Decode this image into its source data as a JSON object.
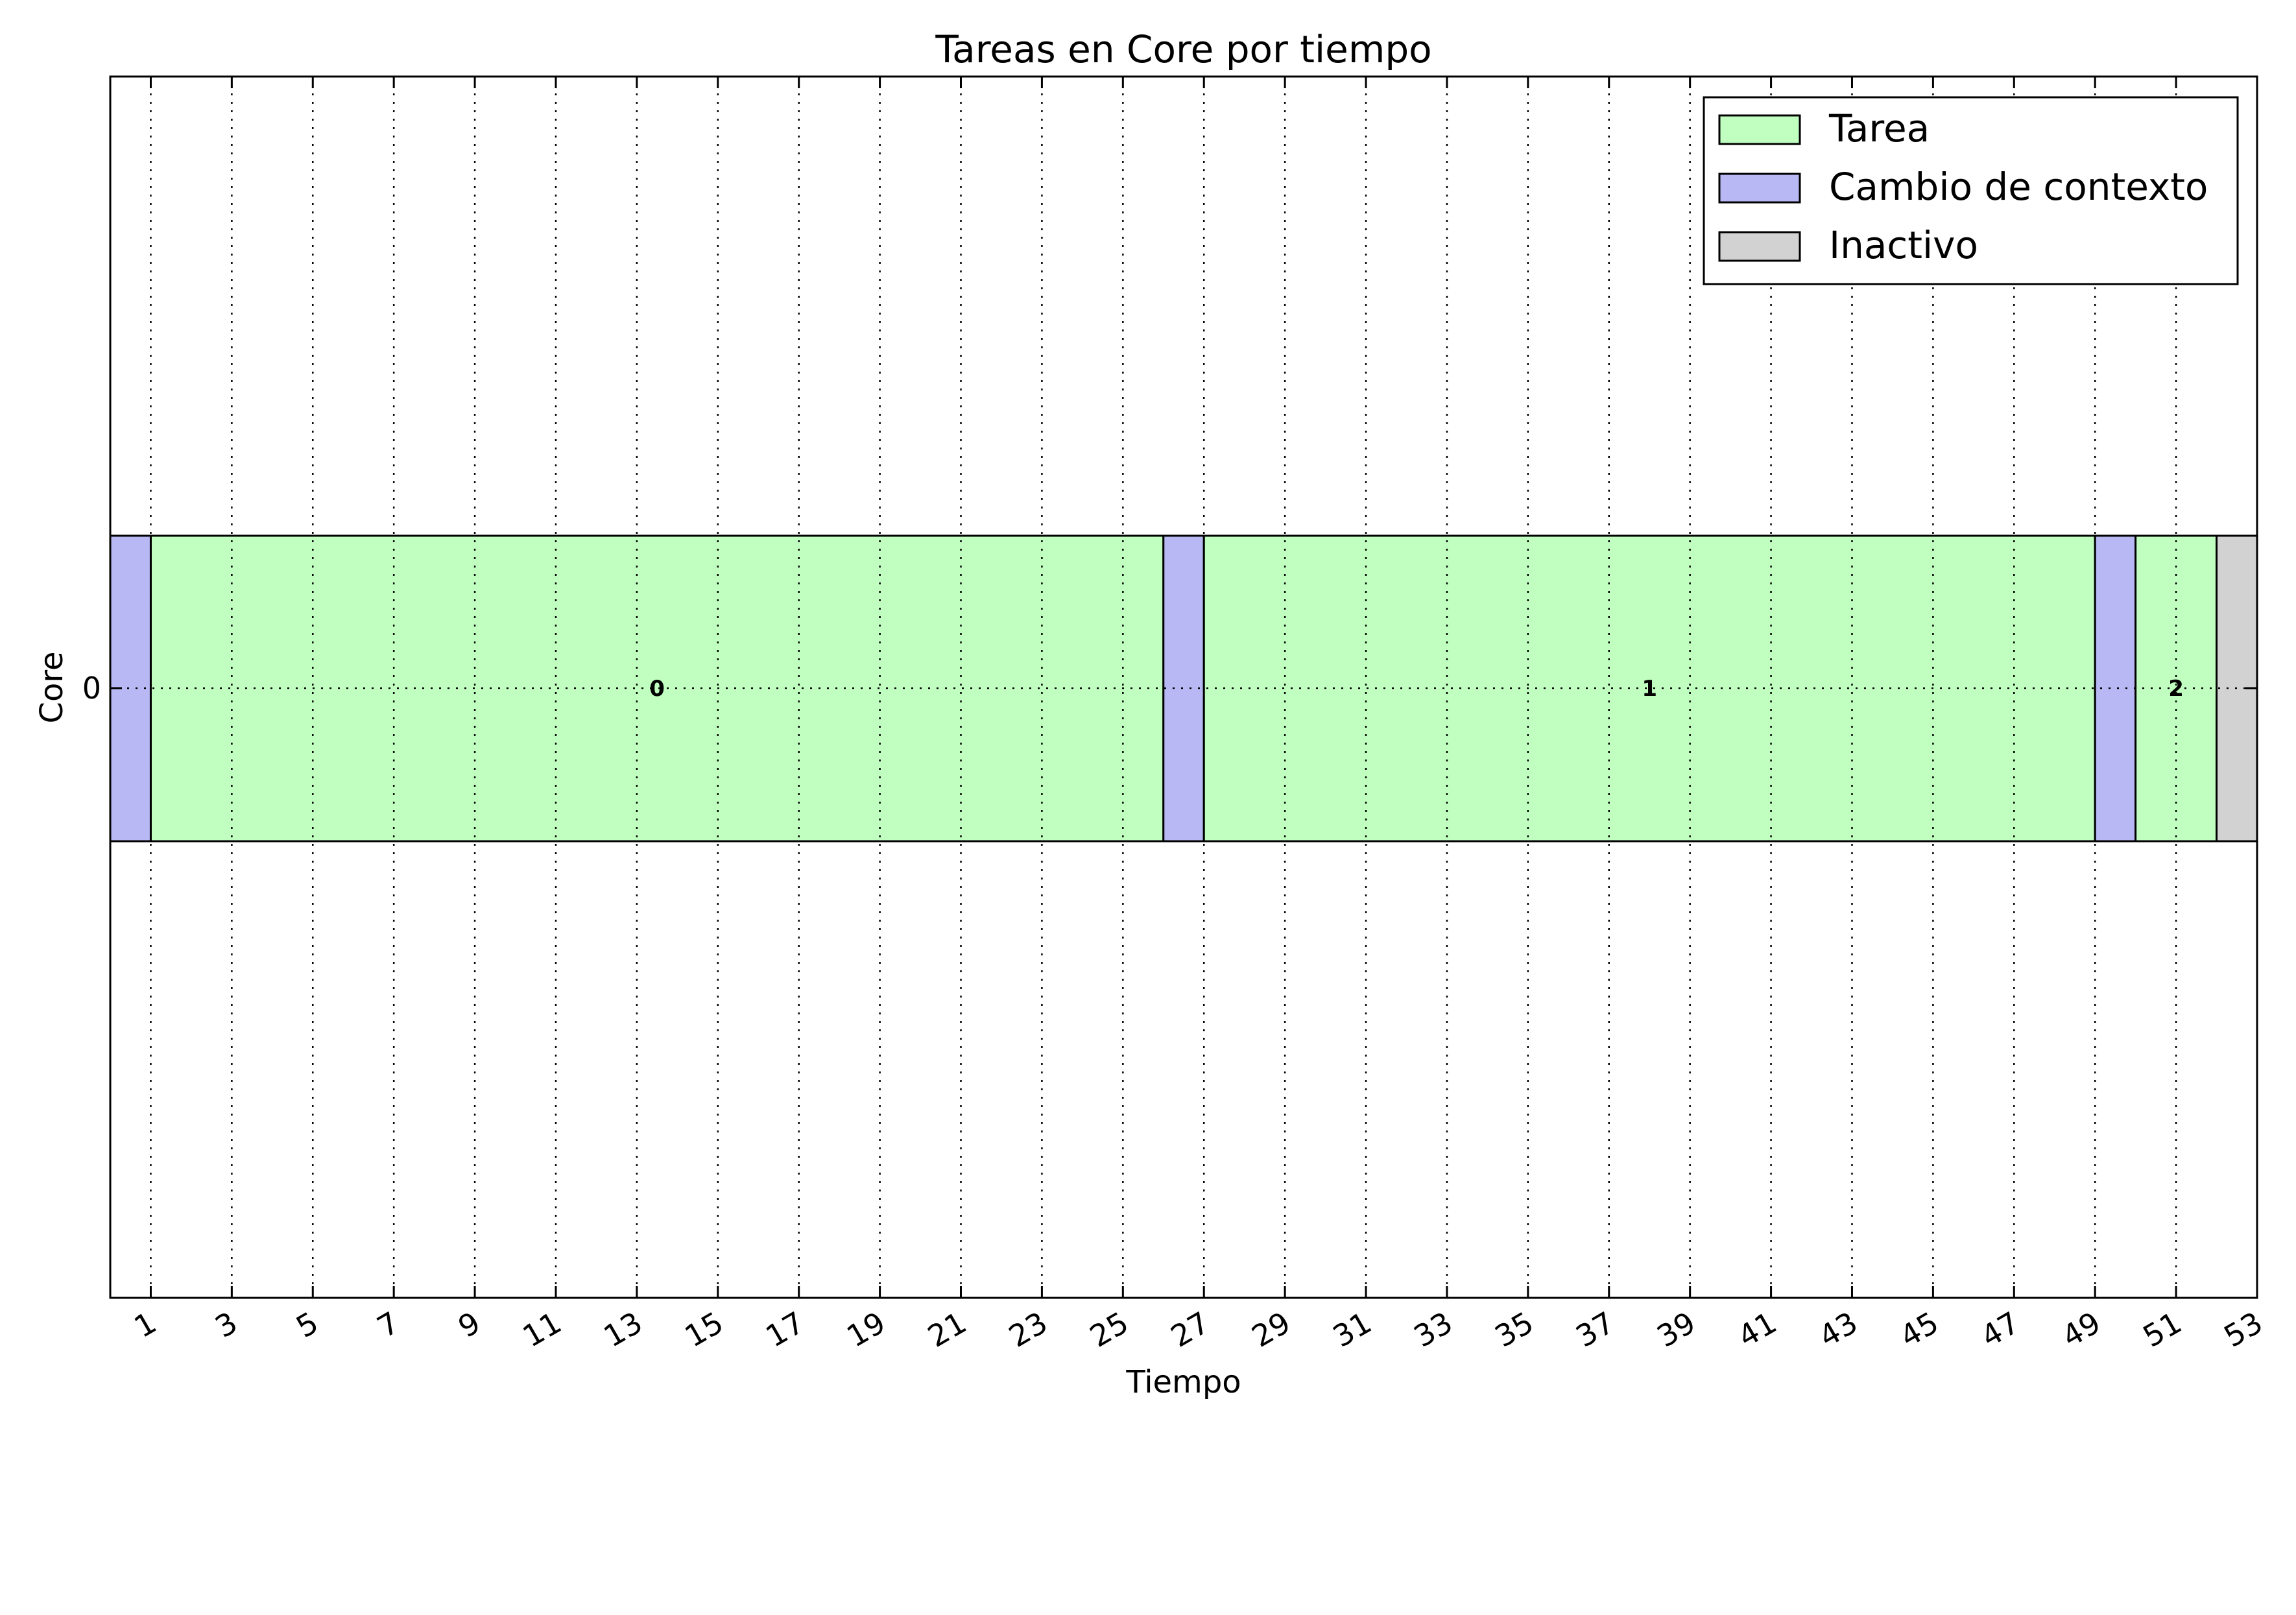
{
  "chart_data": {
    "type": "gantt",
    "title": "Tareas en Core por tiempo",
    "xlabel": "Tiempo",
    "ylabel": "Core",
    "xlim": [
      0,
      53
    ],
    "x_ticks": [
      1,
      3,
      5,
      7,
      9,
      11,
      13,
      15,
      17,
      19,
      21,
      23,
      25,
      27,
      29,
      31,
      33,
      35,
      37,
      39,
      41,
      43,
      45,
      47,
      49,
      51,
      53
    ],
    "y_ticks": [
      "0"
    ],
    "grid": true,
    "legend_position": "top-right",
    "legend": [
      {
        "name": "Tarea",
        "color": "#c0ffc0"
      },
      {
        "name": "Cambio de contexto",
        "color": "#b8b8f4"
      },
      {
        "name": "Inactivo",
        "color": "#d2d2d2"
      }
    ],
    "segments": [
      {
        "core": 0,
        "start": 0,
        "end": 1,
        "kind": "Cambio de contexto",
        "label": ""
      },
      {
        "core": 0,
        "start": 1,
        "end": 26,
        "kind": "Tarea",
        "label": "0"
      },
      {
        "core": 0,
        "start": 26,
        "end": 27,
        "kind": "Cambio de contexto",
        "label": ""
      },
      {
        "core": 0,
        "start": 27,
        "end": 49,
        "kind": "Tarea",
        "label": "1"
      },
      {
        "core": 0,
        "start": 49,
        "end": 50,
        "kind": "Cambio de contexto",
        "label": ""
      },
      {
        "core": 0,
        "start": 50,
        "end": 52,
        "kind": "Tarea",
        "label": "2"
      },
      {
        "core": 0,
        "start": 52,
        "end": 53,
        "kind": "Inactivo",
        "label": ""
      }
    ]
  }
}
